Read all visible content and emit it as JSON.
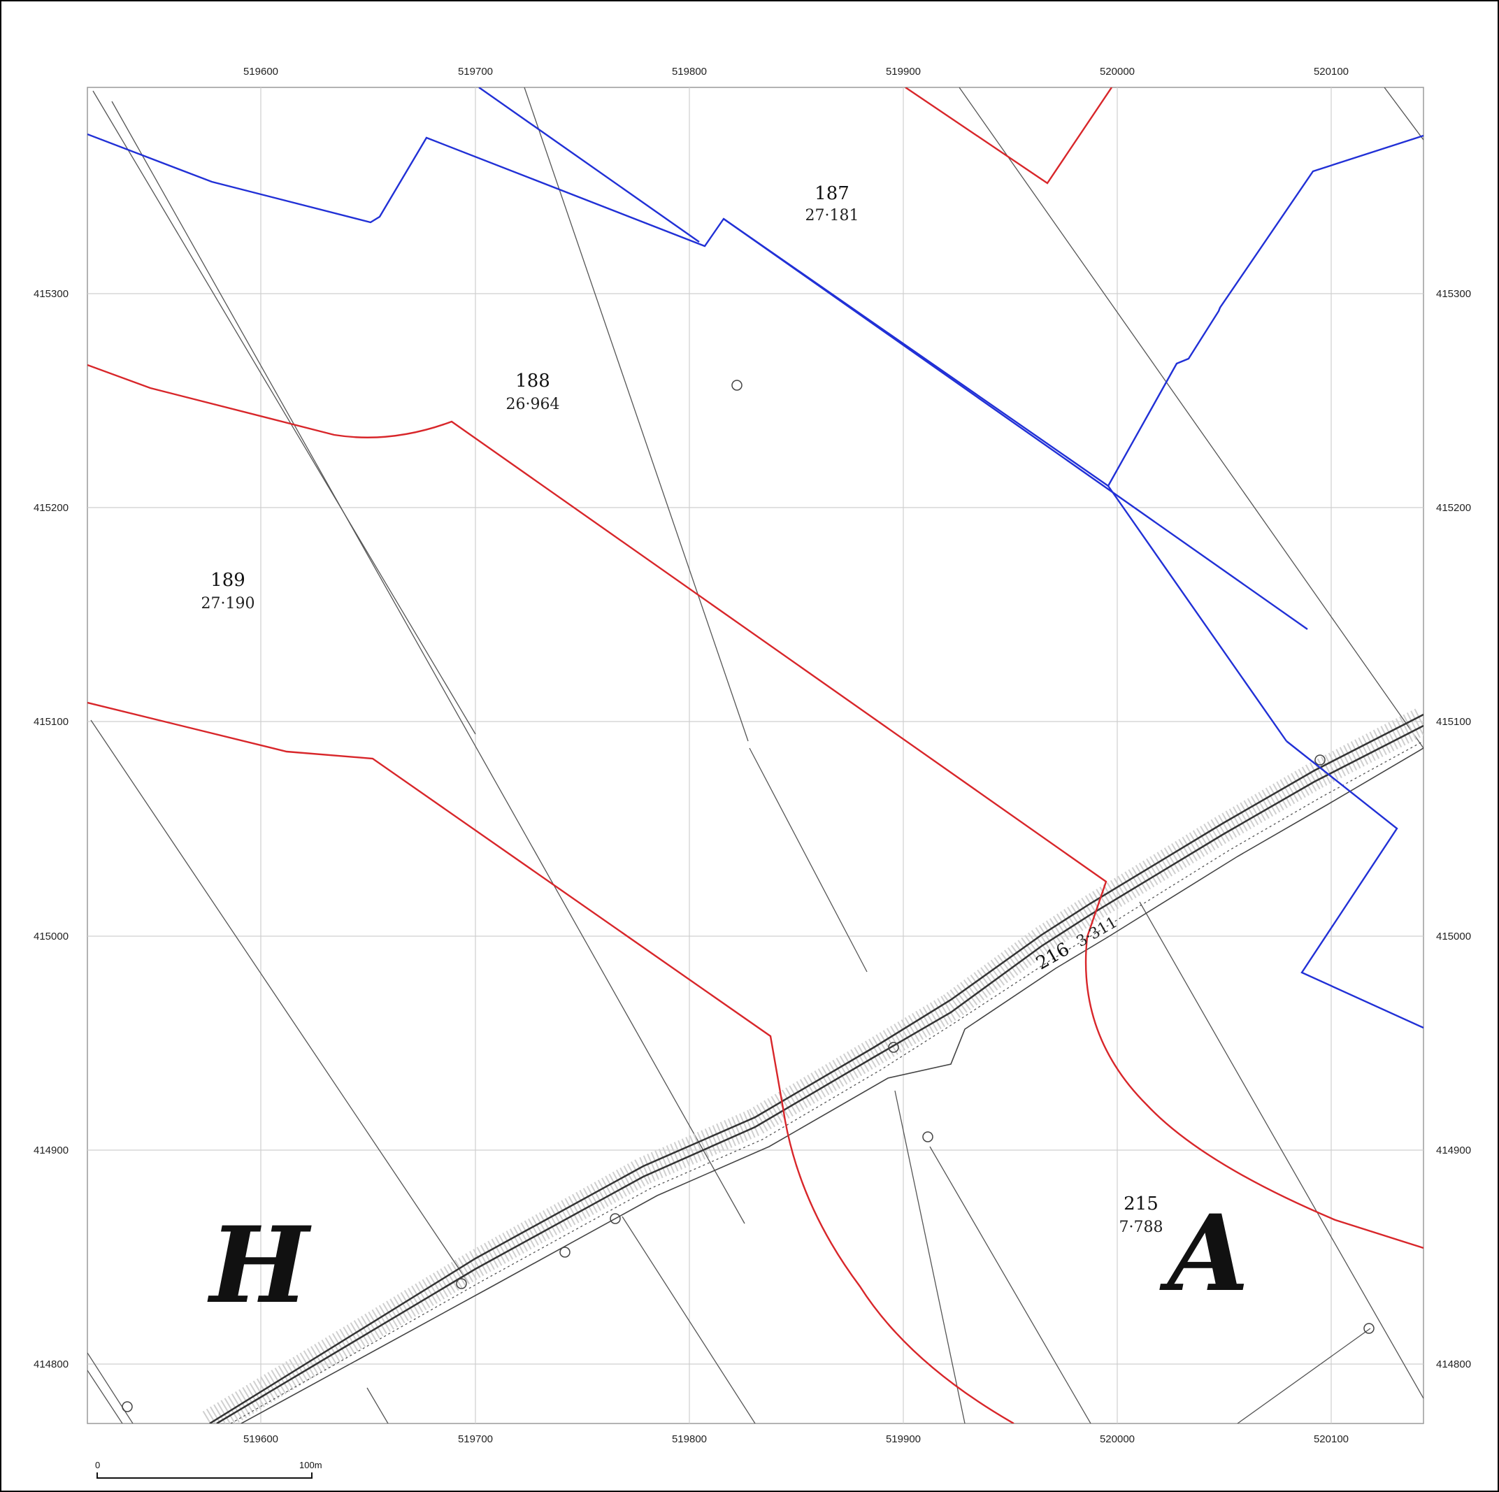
{
  "map": {
    "grid_eastings": [
      "519600",
      "519700",
      "519800",
      "519900",
      "520000",
      "520100"
    ],
    "grid_northings": [
      "415300",
      "415200",
      "415100",
      "415000",
      "414900",
      "414800"
    ],
    "parcels": [
      {
        "number": "187",
        "area": "27·181"
      },
      {
        "number": "188",
        "area": "26·964"
      },
      {
        "number": "189",
        "area": "27·190"
      },
      {
        "number": "215",
        "area": "7·788"
      }
    ],
    "road_parcel": {
      "number": "216",
      "area": "3·311"
    },
    "letters": [
      "H",
      "A"
    ],
    "scale_bar": {
      "start_label": "0",
      "end_label": "100m"
    },
    "boundary_colors": {
      "red": "#d8262a",
      "blue": "#2130d6",
      "grid": "#cfcfcf",
      "lines": "#555555"
    }
  }
}
